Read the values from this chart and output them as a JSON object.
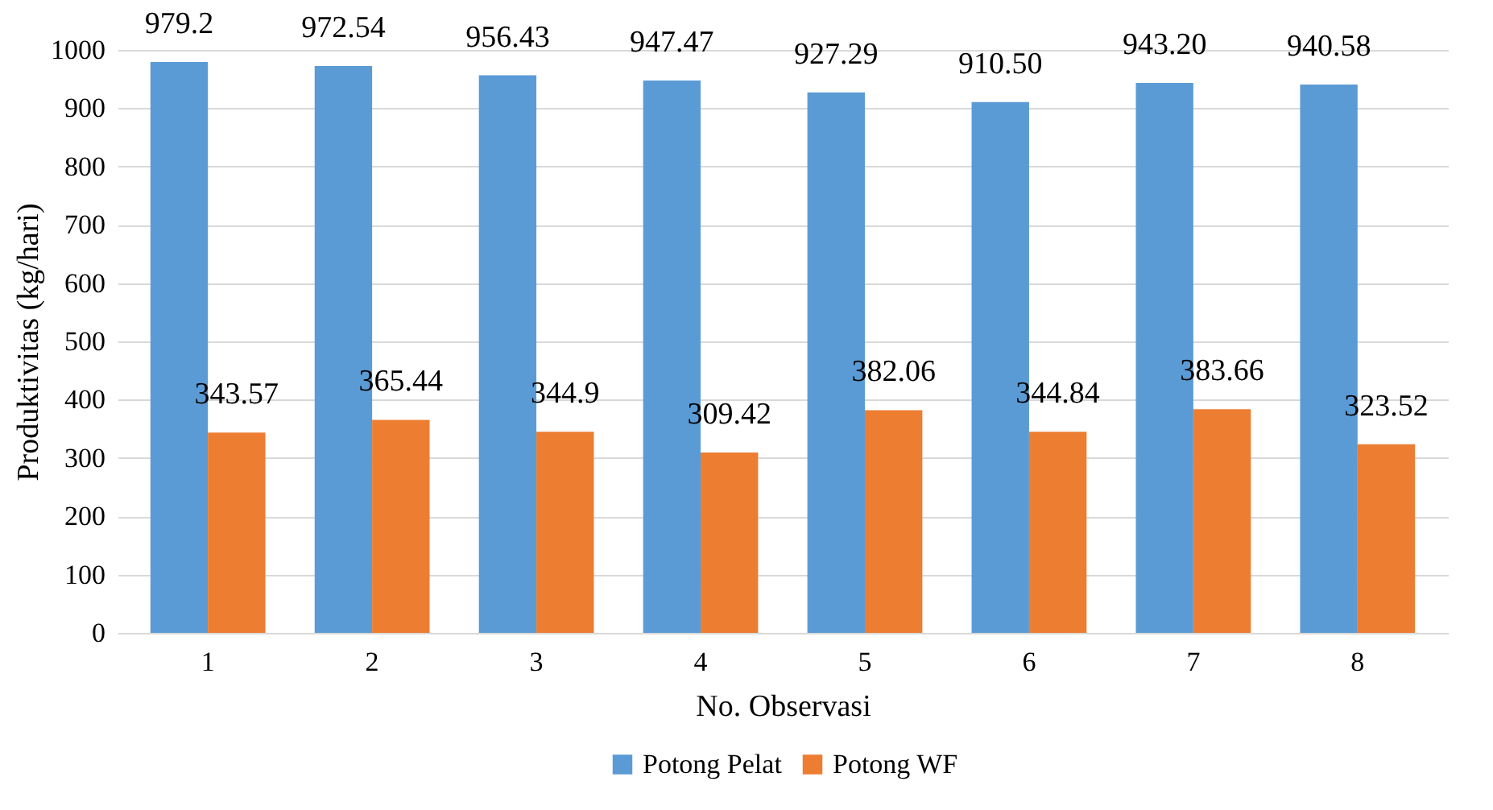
{
  "chart_data": {
    "type": "bar",
    "xlabel": "No. Observasi",
    "ylabel": "Produktivitas (kg/hari)",
    "categories": [
      "1",
      "2",
      "3",
      "4",
      "5",
      "6",
      "7",
      "8"
    ],
    "series": [
      {
        "name": "Potong Pelat",
        "color": "#5b9bd5",
        "values": [
          979.2,
          972.54,
          956.43,
          947.47,
          927.29,
          910.5,
          943.2,
          940.58
        ],
        "value_labels": [
          "979.2",
          "972.54",
          "956.43",
          "947.47",
          "927.29",
          "910.50",
          "943.20",
          "940.58"
        ]
      },
      {
        "name": "Potong WF",
        "color": "#ed7d31",
        "values": [
          343.57,
          365.44,
          344.9,
          309.42,
          382.06,
          344.84,
          383.66,
          323.52
        ],
        "value_labels": [
          "343.57",
          "365.44",
          "344.9",
          "309.42",
          "382.06",
          "344.84",
          "383.66",
          "323.52"
        ]
      }
    ],
    "ylim": [
      0,
      1000
    ],
    "yticks": [
      0,
      100,
      200,
      300,
      400,
      500,
      600,
      700,
      800,
      900,
      1000
    ],
    "grid": "y",
    "legend": "bottom"
  }
}
